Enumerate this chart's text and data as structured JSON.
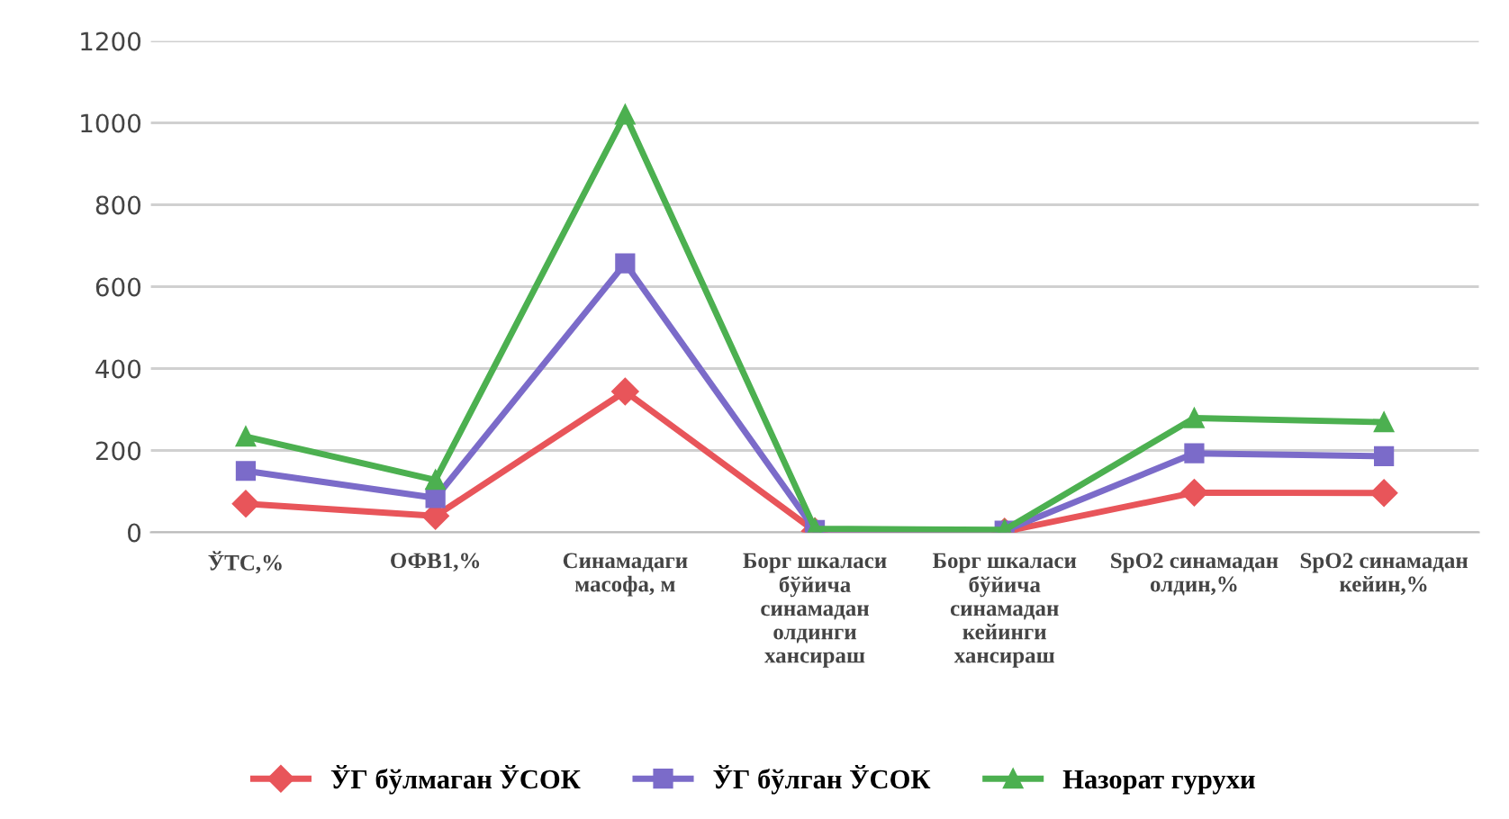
{
  "chart_data": {
    "type": "line",
    "categories": [
      "ЎТС,%",
      "ОФВ1,%",
      "Синамадаги масофа, м",
      "Борг шкаласи бўйича синамадан олдинги хансираш",
      "Борг шкаласи бўйича синамадан кейинги хансираш",
      "SpO2 синамадан олдин,%",
      "SpO2 синамадан кейин,%"
    ],
    "series": [
      {
        "name": "ЎГ бўлмаган ЎСОК",
        "color": "#e8555a",
        "marker": "diamond",
        "values": [
          70,
          40,
          344,
          3,
          2,
          97,
          96
        ]
      },
      {
        "name": "ЎГ бўлган ЎСОК",
        "color": "#7b6bc9",
        "marker": "square",
        "values": [
          150,
          84,
          657,
          6,
          4,
          193,
          186
        ]
      },
      {
        "name": "Назорат гурухи",
        "color": "#4cb050",
        "marker": "triangle",
        "values": [
          234,
          128,
          1020,
          9,
          6,
          279,
          269
        ]
      }
    ],
    "ylim": [
      0,
      1200
    ],
    "yticks": [
      0,
      200,
      400,
      600,
      800,
      1000,
      1200
    ],
    "grid": "y",
    "legend": "bottom"
  }
}
